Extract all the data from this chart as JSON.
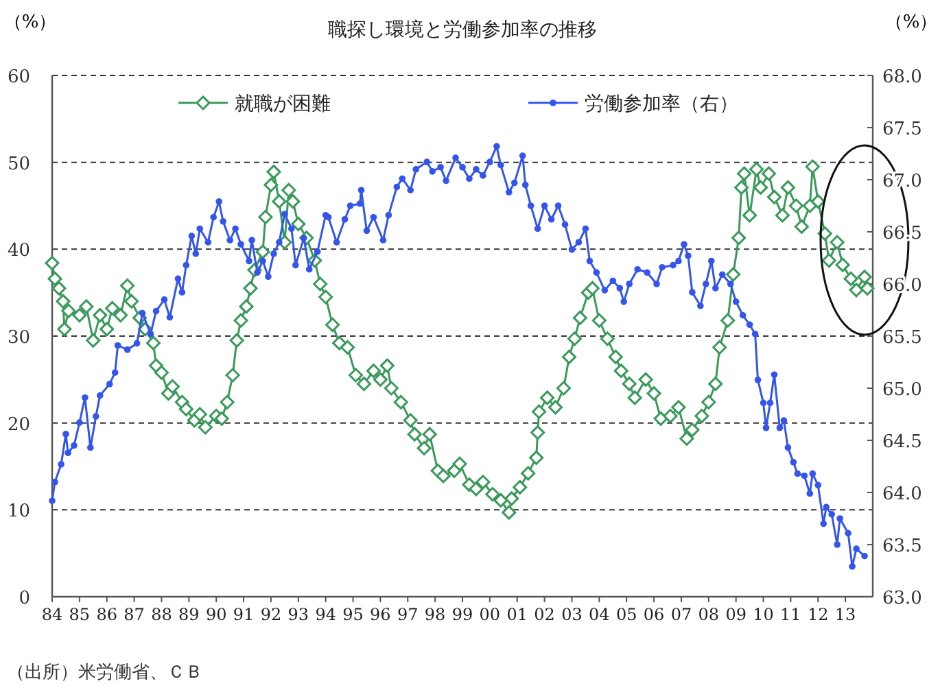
{
  "chart_data": {
    "type": "line",
    "title": "職探し環境と労働参加率の推移",
    "ylabel": "（%）",
    "y2label": "（%）",
    "annotations": [
      "（出所）米労働省、ＣＢ"
    ],
    "xlim": [
      1984,
      2014
    ],
    "ylim": [
      0,
      60
    ],
    "yticks": [
      0,
      10,
      20,
      30,
      40,
      50,
      60
    ],
    "y2lim": [
      63,
      68
    ],
    "y2ticks": [
      {
        "value": 63,
        "label": "63.0"
      },
      {
        "value": 63.5,
        "label": "63.5"
      },
      {
        "value": 64,
        "label": "64.0"
      },
      {
        "value": 64.5,
        "label": "64.5"
      },
      {
        "value": 65,
        "label": "65.0"
      },
      {
        "value": 65.5,
        "label": "65.5"
      },
      {
        "value": 66,
        "label": "66.0"
      },
      {
        "value": 66.5,
        "label": "66.5"
      },
      {
        "value": 67,
        "label": "67.0"
      },
      {
        "value": 67.5,
        "label": "67.5"
      },
      {
        "value": 68,
        "label": "68.0"
      }
    ],
    "xticks": [
      {
        "value": 1984,
        "label": "84"
      },
      {
        "value": 1985,
        "label": "85"
      },
      {
        "value": 1986,
        "label": "86"
      },
      {
        "value": 1987,
        "label": "87"
      },
      {
        "value": 1988,
        "label": "88"
      },
      {
        "value": 1989,
        "label": "89"
      },
      {
        "value": 1990,
        "label": "90"
      },
      {
        "value": 1991,
        "label": "91"
      },
      {
        "value": 1992,
        "label": "92"
      },
      {
        "value": 1993,
        "label": "93"
      },
      {
        "value": 1994,
        "label": "94"
      },
      {
        "value": 1995,
        "label": "95"
      },
      {
        "value": 1996,
        "label": "96"
      },
      {
        "value": 1997,
        "label": "97"
      },
      {
        "value": 1998,
        "label": "98"
      },
      {
        "value": 1999,
        "label": "99"
      },
      {
        "value": 2000,
        "label": "00"
      },
      {
        "value": 2001,
        "label": "01"
      },
      {
        "value": 2002,
        "label": "02"
      },
      {
        "value": 2003,
        "label": "03"
      },
      {
        "value": 2004,
        "label": "04"
      },
      {
        "value": 2005,
        "label": "05"
      },
      {
        "value": 2006,
        "label": "06"
      },
      {
        "value": 2007,
        "label": "07"
      },
      {
        "value": 2008,
        "label": "08"
      },
      {
        "value": 2009,
        "label": "09"
      },
      {
        "value": 2010,
        "label": "10"
      },
      {
        "value": 2011,
        "label": "11"
      },
      {
        "value": 2012,
        "label": "12"
      },
      {
        "value": 2013,
        "label": "13"
      }
    ],
    "grid": "y",
    "legend": "top",
    "series": [
      {
        "name": "就職が困難",
        "color": "#3a9a5b",
        "marker": "diamond",
        "x": [
          1984.0,
          1984.1,
          1984.25,
          1984.4,
          1984.45,
          1984.6,
          1985.0,
          1985.25,
          1985.5,
          1985.75,
          1986.0,
          1986.2,
          1986.5,
          1986.75,
          1986.9,
          1987.2,
          1987.4,
          1987.7,
          1987.8,
          1988.0,
          1988.25,
          1988.4,
          1988.75,
          1988.9,
          1989.2,
          1989.4,
          1989.6,
          1990.0,
          1990.2,
          1990.4,
          1990.6,
          1990.75,
          1990.9,
          1991.1,
          1991.25,
          1991.4,
          1991.7,
          1991.8,
          1992.0,
          1992.1,
          1992.3,
          1992.5,
          1992.65,
          1992.8,
          1993.0,
          1993.3,
          1993.6,
          1993.8,
          1994.0,
          1994.25,
          1994.5,
          1994.8,
          1995.1,
          1995.4,
          1995.75,
          1996.0,
          1996.25,
          1996.4,
          1996.75,
          1997.1,
          1997.25,
          1997.6,
          1997.8,
          1998.1,
          1998.3,
          1998.7,
          1998.9,
          1999.25,
          1999.5,
          1999.75,
          2000.1,
          2000.4,
          2000.7,
          2000.8,
          2001.1,
          2001.4,
          2001.7,
          2001.75,
          2001.8,
          2002.1,
          2002.4,
          2002.7,
          2002.9,
          2003.1,
          2003.3,
          2003.6,
          2003.75,
          2004.0,
          2004.3,
          2004.6,
          2004.8,
          2005.1,
          2005.3,
          2005.7,
          2006.0,
          2006.25,
          2006.6,
          2006.9,
          2007.2,
          2007.4,
          2007.75,
          2008.0,
          2008.25,
          2008.4,
          2008.7,
          2008.9,
          2009.1,
          2009.2,
          2009.3,
          2009.5,
          2009.75,
          2009.9,
          2010.2,
          2010.4,
          2010.7,
          2010.9,
          2011.2,
          2011.4,
          2011.7,
          2011.8,
          2012.0,
          2012.25,
          2012.4,
          2012.7,
          2012.9,
          2013.2,
          2013.4,
          2013.7,
          2013.8
        ],
        "values": [
          38.4,
          36.6,
          35.5,
          34,
          30.8,
          32.9,
          32.4,
          33.4,
          29.5,
          32.4,
          30.8,
          33.2,
          32.4,
          35.8,
          34,
          32.1,
          30.8,
          29.2,
          26.6,
          25.8,
          23.4,
          24.2,
          22.4,
          21.6,
          20.3,
          21,
          19.5,
          20.8,
          20.5,
          22.4,
          25.5,
          29.5,
          31.8,
          33.4,
          35.5,
          37.6,
          39.7,
          43.7,
          47.4,
          48.9,
          45.5,
          40.8,
          46.8,
          45.5,
          42.9,
          41.3,
          38.7,
          36,
          34.5,
          31.3,
          29.2,
          28.7,
          25.5,
          24.5,
          26,
          25,
          26.6,
          24,
          22.4,
          20.3,
          18.7,
          17.1,
          18.7,
          14.5,
          13.9,
          14.5,
          15.3,
          12.9,
          12.4,
          13.2,
          11.8,
          11.1,
          9.7,
          11.3,
          12.6,
          14.2,
          16,
          18.9,
          21.3,
          22.9,
          21.8,
          24,
          27.6,
          29.7,
          32.1,
          35,
          35.5,
          31.8,
          29.7,
          27.6,
          26,
          24.5,
          22.9,
          25,
          23.4,
          20.5,
          20.8,
          21.8,
          18.2,
          19.2,
          20.8,
          22.4,
          24.5,
          28.7,
          31.8,
          37.1,
          41.3,
          47.1,
          48.7,
          43.9,
          49.2,
          47.1,
          48.7,
          46,
          43.9,
          47.1,
          45,
          42.6,
          45,
          49.5,
          45.5,
          41.8,
          38.7,
          40.8,
          38.2,
          36.6,
          35.3,
          36.8,
          35.5
        ]
      },
      {
        "name": "労働参加率（右）",
        "color": "#3355ee",
        "marker": "circle",
        "axis": "y2",
        "x": [
          1984.0,
          1984.1,
          1984.33,
          1984.5,
          1984.58,
          1984.8,
          1985.0,
          1985.2,
          1985.4,
          1985.6,
          1985.75,
          1986.1,
          1986.3,
          1986.4,
          1986.75,
          1987.1,
          1987.3,
          1987.6,
          1987.8,
          1988.1,
          1988.3,
          1988.6,
          1988.75,
          1988.9,
          1989.1,
          1989.25,
          1989.4,
          1989.7,
          1989.9,
          1990.1,
          1990.25,
          1990.5,
          1990.7,
          1990.9,
          1991.2,
          1991.3,
          1991.5,
          1991.7,
          1991.9,
          1992.1,
          1992.3,
          1992.5,
          1992.75,
          1992.9,
          1993.2,
          1993.4,
          1993.7,
          1994.0,
          1994.1,
          1994.4,
          1994.7,
          1994.9,
          1995.25,
          1995.3,
          1995.5,
          1995.75,
          1996.1,
          1996.3,
          1996.6,
          1996.8,
          1997.1,
          1997.3,
          1997.7,
          1997.9,
          1998.2,
          1998.4,
          1998.75,
          1999.0,
          1999.25,
          1999.5,
          1999.75,
          2000.0,
          2000.25,
          2000.4,
          2000.7,
          2000.9,
          2001.2,
          2001.3,
          2001.5,
          2001.75,
          2002.0,
          2002.25,
          2002.5,
          2002.75,
          2003.0,
          2003.25,
          2003.5,
          2003.65,
          2003.9,
          2004.2,
          2004.5,
          2004.75,
          2004.9,
          2005.1,
          2005.4,
          2005.75,
          2006.1,
          2006.3,
          2006.7,
          2006.9,
          2007.1,
          2007.25,
          2007.4,
          2007.7,
          2007.9,
          2008.1,
          2008.25,
          2008.5,
          2008.8,
          2009.0,
          2009.25,
          2009.5,
          2009.7,
          2009.8,
          2010.0,
          2010.1,
          2010.25,
          2010.4,
          2010.6,
          2010.75,
          2010.9,
          2011.1,
          2011.25,
          2011.5,
          2011.7,
          2011.8,
          2012.0,
          2012.2,
          2012.3,
          2012.5,
          2012.7,
          2012.8,
          2013.1,
          2013.25,
          2013.4,
          2013.7
        ],
        "values": [
          63.92,
          64.1,
          64.27,
          64.56,
          64.38,
          64.45,
          64.67,
          64.91,
          64.43,
          64.73,
          64.93,
          65.04,
          65.15,
          65.41,
          65.37,
          65.43,
          65.72,
          65.52,
          65.74,
          65.85,
          65.68,
          66.05,
          65.92,
          66.18,
          66.46,
          66.29,
          66.53,
          66.4,
          66.64,
          66.79,
          66.6,
          66.42,
          66.53,
          66.38,
          66.22,
          66.42,
          66.11,
          66.22,
          66.07,
          66.29,
          66.4,
          66.67,
          66.53,
          66.18,
          66.44,
          66.14,
          66.31,
          66.66,
          66.64,
          66.4,
          66.62,
          66.75,
          66.77,
          66.9,
          66.51,
          66.64,
          66.42,
          66.66,
          66.93,
          67.01,
          66.9,
          67.1,
          67.17,
          67.08,
          67.12,
          66.99,
          67.21,
          67.12,
          67.01,
          67.1,
          67.04,
          67.17,
          67.32,
          67.14,
          66.88,
          66.97,
          67.23,
          66.95,
          66.75,
          66.53,
          66.75,
          66.62,
          66.75,
          66.57,
          66.33,
          66.4,
          66.53,
          66.22,
          66.11,
          65.94,
          66.03,
          65.96,
          65.83,
          66.0,
          66.14,
          66.11,
          66.0,
          66.16,
          66.18,
          66.22,
          66.38,
          66.27,
          65.92,
          65.79,
          66.0,
          66.22,
          65.96,
          66.09,
          66.0,
          65.83,
          65.7,
          65.61,
          65.52,
          65.08,
          64.86,
          64.62,
          64.86,
          65.13,
          64.62,
          64.69,
          64.43,
          64.29,
          64.18,
          64.16,
          63.99,
          64.18,
          64.07,
          63.7,
          63.86,
          63.79,
          63.5,
          63.75,
          63.61,
          63.29,
          63.46,
          63.39
        ]
      }
    ]
  }
}
